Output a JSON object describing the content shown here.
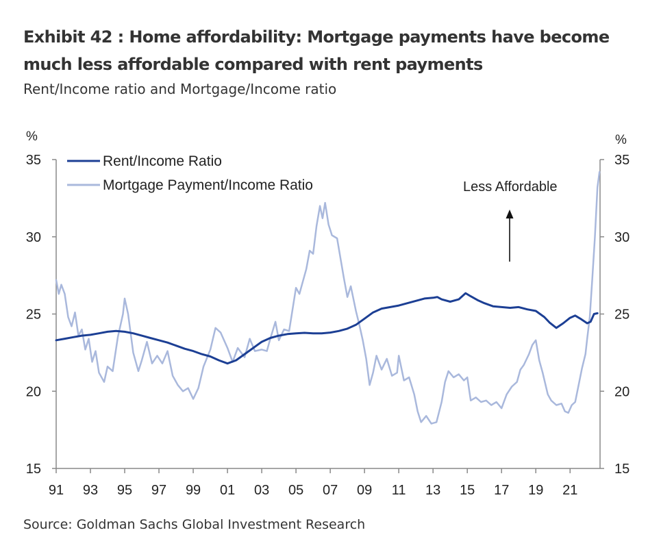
{
  "header": {
    "title": "Exhibit 42 : Home affordability: Mortgage payments have become much less affordable compared with rent payments",
    "subtitle": "Rent/Income ratio and Mortgage/Income ratio"
  },
  "footer": {
    "source": "Source: Goldman Sachs Global Investment Research"
  },
  "colors": {
    "rent": "#1c3f94",
    "mortgage": "#a9b8dc",
    "axis": "#888888",
    "text": "#222222"
  },
  "chart_data": {
    "type": "line",
    "title": "Rent/Income ratio and Mortgage/Income ratio",
    "left_unit": "%",
    "right_unit": "%",
    "ylim": [
      15,
      35
    ],
    "yticks": [
      15,
      20,
      25,
      30,
      35
    ],
    "xlim": [
      1991,
      2022.75
    ],
    "xticks": [
      {
        "value": 1991,
        "label": "91"
      },
      {
        "value": 1993,
        "label": "93"
      },
      {
        "value": 1995,
        "label": "95"
      },
      {
        "value": 1997,
        "label": "97"
      },
      {
        "value": 1999,
        "label": "99"
      },
      {
        "value": 2001,
        "label": "01"
      },
      {
        "value": 2003,
        "label": "03"
      },
      {
        "value": 2005,
        "label": "05"
      },
      {
        "value": 2007,
        "label": "07"
      },
      {
        "value": 2009,
        "label": "09"
      },
      {
        "value": 2011,
        "label": "11"
      },
      {
        "value": 2013,
        "label": "13"
      },
      {
        "value": 2015,
        "label": "15"
      },
      {
        "value": 2017,
        "label": "17"
      },
      {
        "value": 2019,
        "label": "19"
      },
      {
        "value": 2021,
        "label": "21"
      }
    ],
    "annotation": {
      "text": "Less Affordable",
      "arrow": "up"
    },
    "legend_position": "top-left",
    "series": [
      {
        "name": "Rent/Income Ratio",
        "color": "#1c3f94",
        "width": 3,
        "points": [
          [
            1991.0,
            23.3
          ],
          [
            1991.5,
            23.4
          ],
          [
            1992.0,
            23.5
          ],
          [
            1992.5,
            23.6
          ],
          [
            1993.0,
            23.65
          ],
          [
            1993.5,
            23.75
          ],
          [
            1994.0,
            23.85
          ],
          [
            1994.5,
            23.9
          ],
          [
            1995.0,
            23.85
          ],
          [
            1995.5,
            23.75
          ],
          [
            1996.0,
            23.6
          ],
          [
            1996.5,
            23.45
          ],
          [
            1997.0,
            23.3
          ],
          [
            1997.5,
            23.15
          ],
          [
            1998.0,
            22.95
          ],
          [
            1998.5,
            22.75
          ],
          [
            1999.0,
            22.6
          ],
          [
            1999.5,
            22.4
          ],
          [
            2000.0,
            22.25
          ],
          [
            2000.5,
            22.0
          ],
          [
            2001.0,
            21.8
          ],
          [
            2001.5,
            22.0
          ],
          [
            2002.0,
            22.4
          ],
          [
            2002.5,
            22.8
          ],
          [
            2003.0,
            23.2
          ],
          [
            2003.5,
            23.45
          ],
          [
            2004.0,
            23.6
          ],
          [
            2004.5,
            23.7
          ],
          [
            2005.0,
            23.75
          ],
          [
            2005.5,
            23.78
          ],
          [
            2006.0,
            23.75
          ],
          [
            2006.5,
            23.75
          ],
          [
            2007.0,
            23.8
          ],
          [
            2007.5,
            23.9
          ],
          [
            2008.0,
            24.05
          ],
          [
            2008.5,
            24.3
          ],
          [
            2009.0,
            24.7
          ],
          [
            2009.5,
            25.1
          ],
          [
            2010.0,
            25.35
          ],
          [
            2010.5,
            25.45
          ],
          [
            2011.0,
            25.55
          ],
          [
            2011.5,
            25.7
          ],
          [
            2012.0,
            25.85
          ],
          [
            2012.5,
            26.0
          ],
          [
            2013.0,
            26.05
          ],
          [
            2013.25,
            26.1
          ],
          [
            2013.5,
            25.95
          ],
          [
            2014.0,
            25.8
          ],
          [
            2014.5,
            25.95
          ],
          [
            2014.9,
            26.35
          ],
          [
            2015.2,
            26.15
          ],
          [
            2015.6,
            25.9
          ],
          [
            2016.0,
            25.7
          ],
          [
            2016.5,
            25.5
          ],
          [
            2017.0,
            25.45
          ],
          [
            2017.5,
            25.4
          ],
          [
            2018.0,
            25.45
          ],
          [
            2018.5,
            25.3
          ],
          [
            2019.0,
            25.2
          ],
          [
            2019.5,
            24.8
          ],
          [
            2019.8,
            24.45
          ],
          [
            2020.2,
            24.1
          ],
          [
            2020.6,
            24.4
          ],
          [
            2021.0,
            24.75
          ],
          [
            2021.3,
            24.9
          ],
          [
            2021.6,
            24.7
          ],
          [
            2022.0,
            24.4
          ],
          [
            2022.2,
            24.5
          ],
          [
            2022.4,
            25.0
          ],
          [
            2022.6,
            25.05
          ]
        ]
      },
      {
        "name": "Mortgage Payment/Income Ratio",
        "color": "#a9b8dc",
        "width": 2.5,
        "points": [
          [
            1991.0,
            27.2
          ],
          [
            1991.15,
            26.3
          ],
          [
            1991.3,
            26.9
          ],
          [
            1991.5,
            26.3
          ],
          [
            1991.7,
            24.8
          ],
          [
            1991.9,
            24.2
          ],
          [
            1992.1,
            25.1
          ],
          [
            1992.3,
            23.6
          ],
          [
            1992.5,
            24.0
          ],
          [
            1992.7,
            22.7
          ],
          [
            1992.9,
            23.4
          ],
          [
            1993.1,
            21.9
          ],
          [
            1993.3,
            22.6
          ],
          [
            1993.5,
            21.2
          ],
          [
            1993.8,
            20.6
          ],
          [
            1994.0,
            21.6
          ],
          [
            1994.3,
            21.3
          ],
          [
            1994.6,
            23.5
          ],
          [
            1994.9,
            25.0
          ],
          [
            1995.0,
            26.0
          ],
          [
            1995.2,
            25.0
          ],
          [
            1995.5,
            22.5
          ],
          [
            1995.8,
            21.3
          ],
          [
            1996.0,
            22.0
          ],
          [
            1996.3,
            23.2
          ],
          [
            1996.6,
            21.8
          ],
          [
            1996.9,
            22.3
          ],
          [
            1997.2,
            21.8
          ],
          [
            1997.5,
            22.6
          ],
          [
            1997.8,
            21.0
          ],
          [
            1998.1,
            20.4
          ],
          [
            1998.4,
            20.0
          ],
          [
            1998.7,
            20.2
          ],
          [
            1999.0,
            19.5
          ],
          [
            1999.3,
            20.2
          ],
          [
            1999.6,
            21.6
          ],
          [
            2000.0,
            22.7
          ],
          [
            2000.3,
            24.1
          ],
          [
            2000.6,
            23.8
          ],
          [
            2001.0,
            22.8
          ],
          [
            2001.3,
            21.9
          ],
          [
            2001.6,
            22.8
          ],
          [
            2002.0,
            22.2
          ],
          [
            2002.3,
            23.4
          ],
          [
            2002.6,
            22.6
          ],
          [
            2003.0,
            22.7
          ],
          [
            2003.3,
            22.6
          ],
          [
            2003.5,
            23.4
          ],
          [
            2003.8,
            24.5
          ],
          [
            2004.0,
            23.3
          ],
          [
            2004.3,
            24.0
          ],
          [
            2004.6,
            23.9
          ],
          [
            2004.8,
            25.3
          ],
          [
            2005.0,
            26.7
          ],
          [
            2005.2,
            26.3
          ],
          [
            2005.4,
            27.1
          ],
          [
            2005.6,
            27.9
          ],
          [
            2005.8,
            29.1
          ],
          [
            2006.0,
            28.9
          ],
          [
            2006.2,
            30.7
          ],
          [
            2006.4,
            32.0
          ],
          [
            2006.55,
            31.2
          ],
          [
            2006.7,
            32.2
          ],
          [
            2006.9,
            30.8
          ],
          [
            2007.1,
            30.1
          ],
          [
            2007.4,
            29.9
          ],
          [
            2007.6,
            28.6
          ],
          [
            2007.8,
            27.3
          ],
          [
            2008.0,
            26.1
          ],
          [
            2008.2,
            26.8
          ],
          [
            2008.5,
            25.2
          ],
          [
            2008.7,
            24.3
          ],
          [
            2008.9,
            23.3
          ],
          [
            2009.1,
            22.1
          ],
          [
            2009.3,
            20.4
          ],
          [
            2009.5,
            21.2
          ],
          [
            2009.7,
            22.3
          ],
          [
            2010.0,
            21.4
          ],
          [
            2010.3,
            22.1
          ],
          [
            2010.6,
            21.0
          ],
          [
            2010.9,
            21.2
          ],
          [
            2011.0,
            22.3
          ],
          [
            2011.3,
            20.7
          ],
          [
            2011.6,
            20.9
          ],
          [
            2011.9,
            19.8
          ],
          [
            2012.1,
            18.7
          ],
          [
            2012.3,
            18.0
          ],
          [
            2012.6,
            18.4
          ],
          [
            2012.9,
            17.9
          ],
          [
            2013.2,
            18.0
          ],
          [
            2013.5,
            19.3
          ],
          [
            2013.7,
            20.6
          ],
          [
            2013.9,
            21.3
          ],
          [
            2014.2,
            20.9
          ],
          [
            2014.5,
            21.1
          ],
          [
            2014.8,
            20.7
          ],
          [
            2015.0,
            20.9
          ],
          [
            2015.2,
            19.4
          ],
          [
            2015.5,
            19.6
          ],
          [
            2015.8,
            19.3
          ],
          [
            2016.1,
            19.4
          ],
          [
            2016.4,
            19.1
          ],
          [
            2016.7,
            19.3
          ],
          [
            2017.0,
            18.9
          ],
          [
            2017.3,
            19.8
          ],
          [
            2017.6,
            20.3
          ],
          [
            2017.9,
            20.6
          ],
          [
            2018.1,
            21.4
          ],
          [
            2018.3,
            21.7
          ],
          [
            2018.6,
            22.4
          ],
          [
            2018.8,
            23.0
          ],
          [
            2019.0,
            23.3
          ],
          [
            2019.2,
            22.0
          ],
          [
            2019.4,
            21.2
          ],
          [
            2019.7,
            19.8
          ],
          [
            2019.9,
            19.4
          ],
          [
            2020.2,
            19.1
          ],
          [
            2020.5,
            19.2
          ],
          [
            2020.7,
            18.7
          ],
          [
            2020.9,
            18.6
          ],
          [
            2021.1,
            19.1
          ],
          [
            2021.3,
            19.3
          ],
          [
            2021.5,
            20.4
          ],
          [
            2021.7,
            21.5
          ],
          [
            2021.9,
            22.4
          ],
          [
            2022.0,
            23.4
          ],
          [
            2022.15,
            24.8
          ],
          [
            2022.3,
            27.3
          ],
          [
            2022.45,
            30.0
          ],
          [
            2022.6,
            33.2
          ],
          [
            2022.72,
            34.2
          ]
        ]
      }
    ]
  }
}
